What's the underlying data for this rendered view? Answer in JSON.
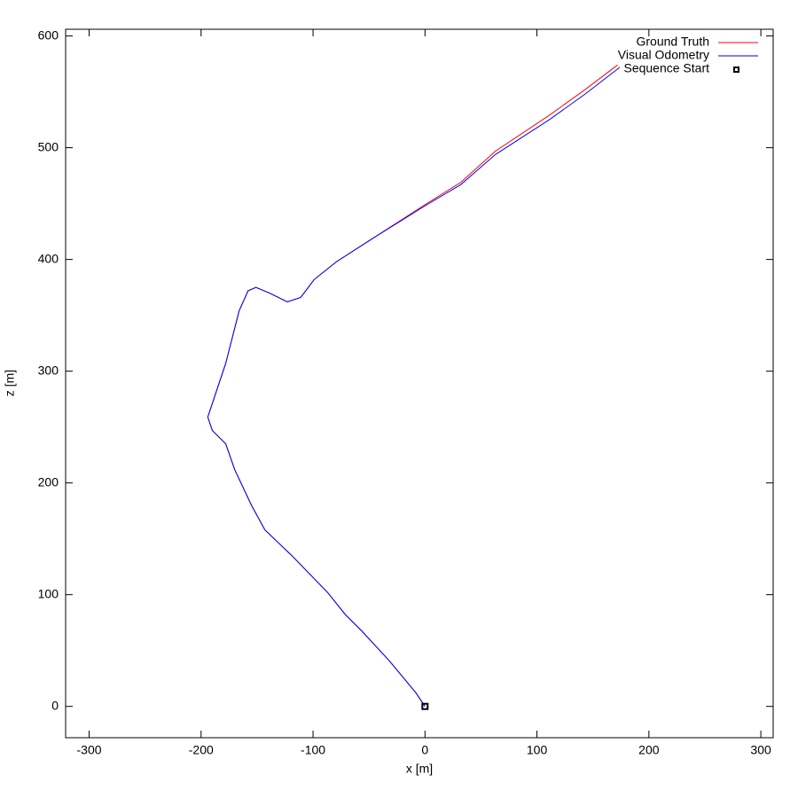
{
  "chart_data": {
    "type": "line",
    "xlabel": "x [m]",
    "ylabel": "z [m]",
    "xlim": [
      -321,
      311
    ],
    "ylim": [
      -28,
      606
    ],
    "xticks": [
      -300,
      -200,
      -100,
      0,
      100,
      200,
      300
    ],
    "yticks": [
      0,
      100,
      200,
      300,
      400,
      500,
      600
    ],
    "grid": false,
    "legend": "top-right",
    "series": [
      {
        "name": "Ground Truth",
        "color": "#ff0000",
        "marker": "line",
        "x": [
          0,
          -8,
          -32,
          -56,
          -71,
          -87,
          -119,
          -143,
          -155,
          -170,
          -178,
          -190,
          -194,
          -190,
          -178,
          -166,
          -158,
          -151,
          -139,
          -123,
          -111,
          -99,
          -79,
          -48,
          0,
          32,
          63,
          111,
          143,
          172
        ],
        "values": [
          0,
          12,
          41,
          67,
          82,
          102,
          135,
          158,
          180,
          212,
          235,
          247,
          259,
          271,
          307,
          354,
          372,
          375,
          370,
          362,
          366,
          382,
          398,
          418,
          449,
          469,
          497,
          529,
          552,
          574
        ]
      },
      {
        "name": "Visual Odometry",
        "color": "#0000ff",
        "marker": "line",
        "x": [
          0,
          -8,
          -32,
          -56,
          -71,
          -87,
          -119,
          -143,
          -155,
          -170,
          -178,
          -190,
          -194,
          -190,
          -178,
          -166,
          -158,
          -151,
          -139,
          -123,
          -111,
          -99,
          -79,
          -48,
          0,
          32,
          63,
          111,
          143,
          174
        ],
        "values": [
          0,
          12,
          41,
          67,
          82,
          102,
          135,
          158,
          180,
          212,
          235,
          247,
          259,
          271,
          307,
          354,
          372,
          375,
          370,
          362,
          366,
          382,
          398,
          418,
          448,
          467,
          494,
          525,
          548,
          572
        ]
      },
      {
        "name": "Sequence Start",
        "color": "#000000",
        "marker": "square",
        "x": [
          0
        ],
        "values": [
          0
        ]
      }
    ]
  }
}
